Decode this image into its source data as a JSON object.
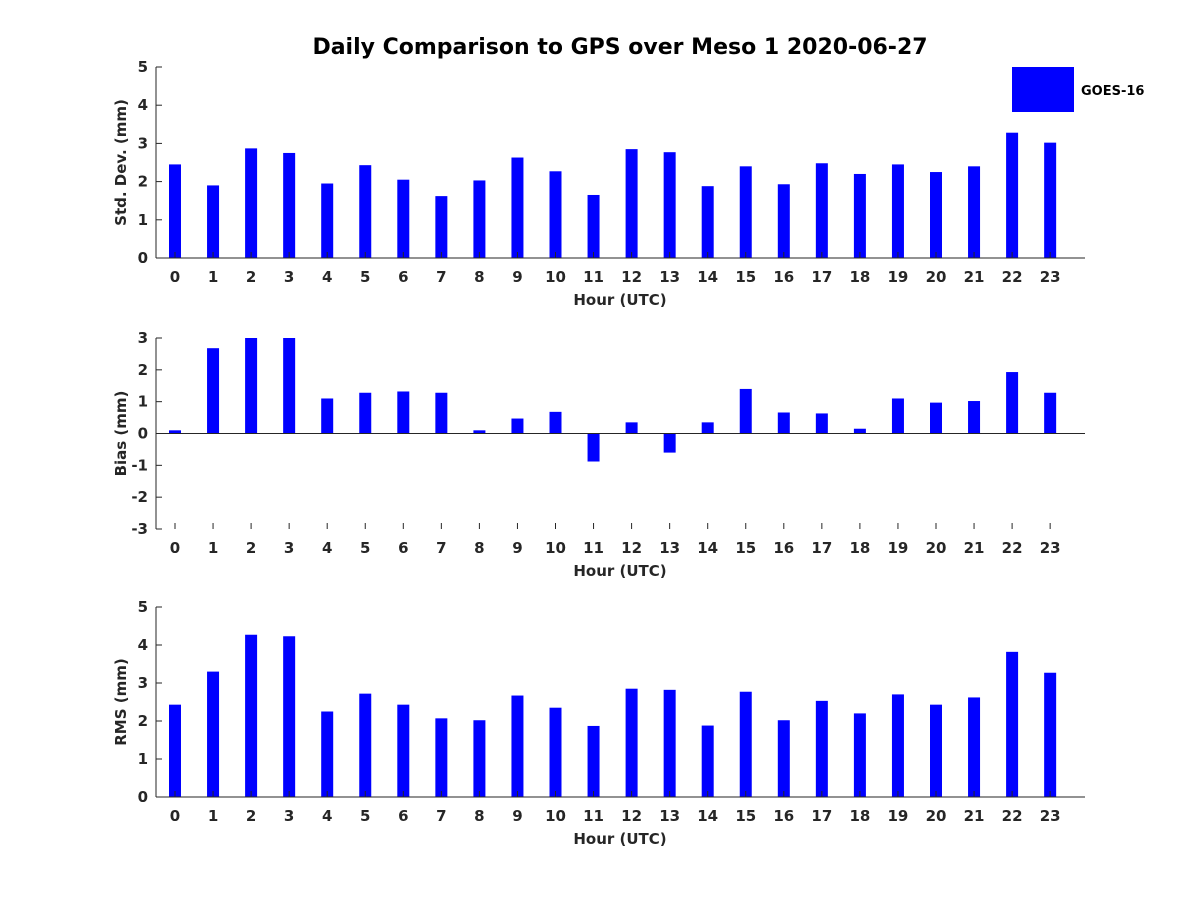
{
  "chart_data": [
    {
      "type": "bar",
      "title": "Daily Comparison to GPS over Meso 1 2020-06-27",
      "xlabel": "Hour (UTC)",
      "ylabel": "Std. Dev. (mm)",
      "ylim": [
        0,
        5
      ],
      "yticks": [
        0,
        1,
        2,
        3,
        4,
        5
      ],
      "categories": [
        "0",
        "1",
        "2",
        "3",
        "4",
        "5",
        "6",
        "7",
        "8",
        "9",
        "10",
        "11",
        "12",
        "13",
        "14",
        "15",
        "16",
        "17",
        "18",
        "19",
        "20",
        "21",
        "22",
        "23"
      ],
      "series": [
        {
          "name": "GOES-16",
          "color": "#0000ff",
          "values": [
            2.45,
            1.9,
            2.87,
            2.75,
            1.95,
            2.43,
            2.05,
            1.62,
            2.03,
            2.63,
            2.27,
            1.65,
            2.85,
            2.77,
            1.88,
            2.4,
            1.93,
            2.48,
            2.2,
            2.45,
            2.25,
            2.4,
            3.28,
            3.02
          ]
        }
      ],
      "legend": "top-right",
      "grid": false
    },
    {
      "type": "bar",
      "title": "",
      "xlabel": "Hour (UTC)",
      "ylabel": "Bias (mm)",
      "ylim": [
        -3,
        3
      ],
      "yticks": [
        -3,
        -2,
        -1,
        0,
        1,
        2,
        3
      ],
      "categories": [
        "0",
        "1",
        "2",
        "3",
        "4",
        "5",
        "6",
        "7",
        "8",
        "9",
        "10",
        "11",
        "12",
        "13",
        "14",
        "15",
        "16",
        "17",
        "18",
        "19",
        "20",
        "21",
        "22",
        "23"
      ],
      "series": [
        {
          "name": "GOES-16",
          "color": "#0000ff",
          "values": [
            0.1,
            2.68,
            3.0,
            3.0,
            1.1,
            1.28,
            1.32,
            1.28,
            0.1,
            0.47,
            0.68,
            -0.88,
            0.35,
            -0.6,
            0.35,
            1.4,
            0.66,
            0.63,
            0.15,
            1.1,
            0.97,
            1.02,
            1.93,
            1.28
          ]
        }
      ],
      "grid": false
    },
    {
      "type": "bar",
      "title": "",
      "xlabel": "Hour (UTC)",
      "ylabel": "RMS (mm)",
      "ylim": [
        0,
        5
      ],
      "yticks": [
        0,
        1,
        2,
        3,
        4,
        5
      ],
      "categories": [
        "0",
        "1",
        "2",
        "3",
        "4",
        "5",
        "6",
        "7",
        "8",
        "9",
        "10",
        "11",
        "12",
        "13",
        "14",
        "15",
        "16",
        "17",
        "18",
        "19",
        "20",
        "21",
        "22",
        "23"
      ],
      "series": [
        {
          "name": "GOES-16",
          "color": "#0000ff",
          "values": [
            2.43,
            3.3,
            4.27,
            4.23,
            2.25,
            2.72,
            2.43,
            2.07,
            2.02,
            2.67,
            2.35,
            1.87,
            2.85,
            2.82,
            1.88,
            2.77,
            2.02,
            2.53,
            2.2,
            2.7,
            2.43,
            2.62,
            3.82,
            3.27
          ]
        }
      ],
      "grid": false
    }
  ],
  "legend": {
    "label": "GOES-16",
    "color": "#0000ff"
  }
}
